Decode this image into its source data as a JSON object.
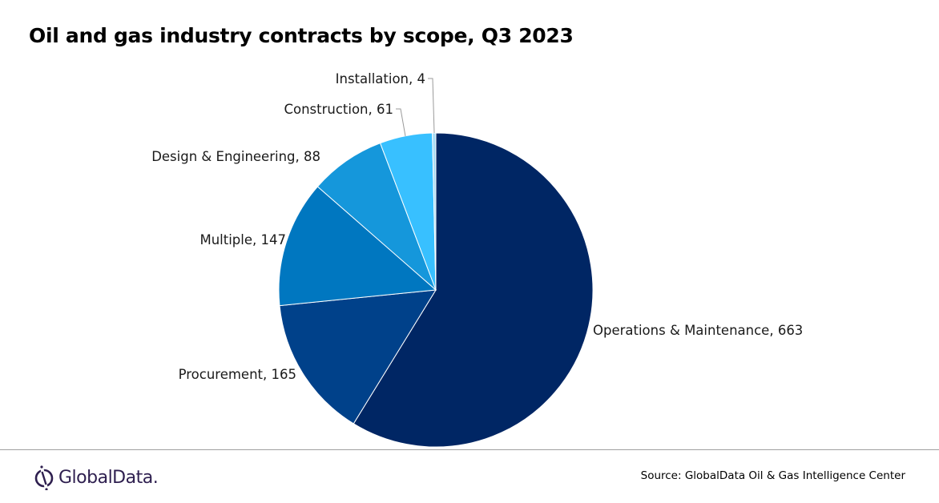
{
  "chart_data": {
    "type": "pie",
    "title": "Oil and gas industry contracts by scope, Q3 2023",
    "start_angle": "top, clockwise",
    "slices": [
      {
        "label": "Operations & Maintenance",
        "value": 663,
        "color": "#002664"
      },
      {
        "label": "Procurement",
        "value": 165,
        "color": "#00418a"
      },
      {
        "label": "Multiple",
        "value": 147,
        "color": "#0077c0"
      },
      {
        "label": "Design & Engineering",
        "value": 88,
        "color": "#1597db"
      },
      {
        "label": "Construction",
        "value": 61,
        "color": "#38c0ff"
      },
      {
        "label": "Installation",
        "value": 4,
        "color": "#a8dcf5"
      }
    ]
  },
  "footer": {
    "logo": "GlobalData.",
    "source": "Source:  GlobalData Oil & Gas Intelligence Center"
  }
}
